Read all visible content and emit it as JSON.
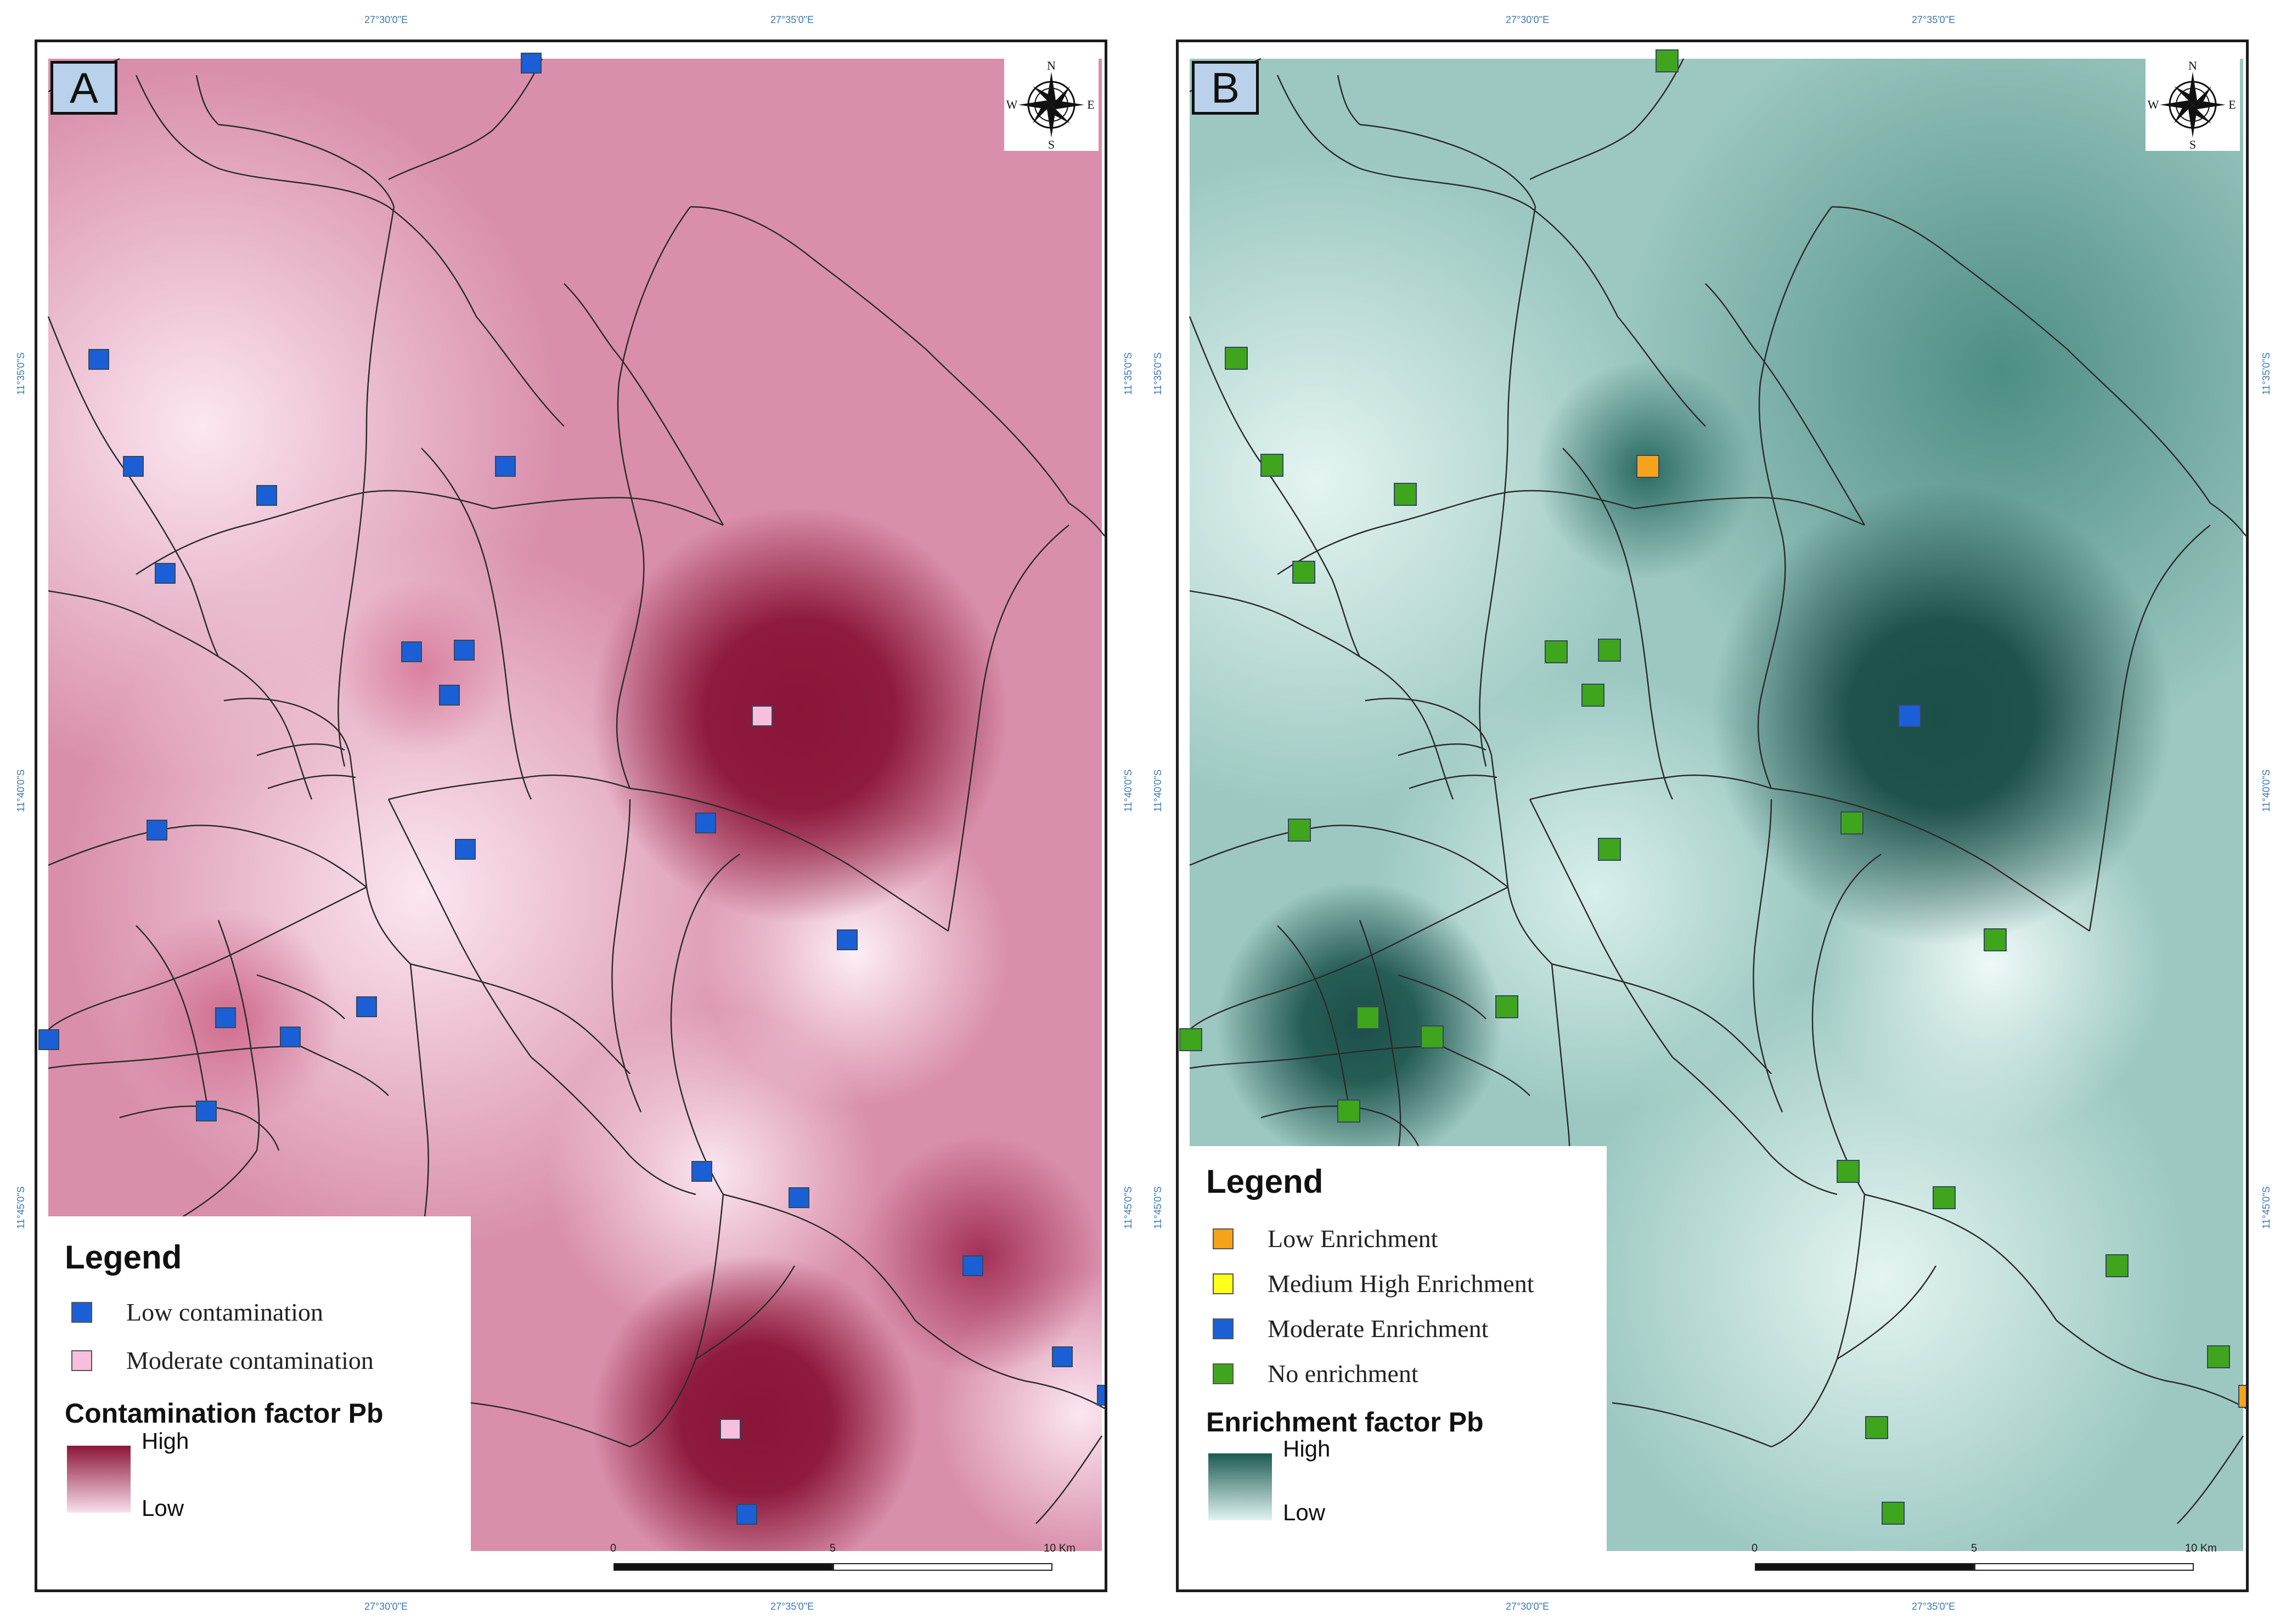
{
  "coordinates": {
    "lon_1": "27°30'0\"E",
    "lon_2": "27°35'0\"E",
    "lat_1": "11°35'0\"S",
    "lat_2": "11°40'0\"S",
    "lat_3": "11°45'0\"S"
  },
  "compass": {
    "n": "N",
    "s": "S",
    "e": "E",
    "w": "W"
  },
  "scale": {
    "tick_0": "0",
    "tick_5": "5",
    "tick_10": "10 Km"
  },
  "panel_a": {
    "label": "A",
    "legend_title": "Legend",
    "items": [
      {
        "label": "Low contamination",
        "color": "#1a5fd6"
      },
      {
        "label": "Moderate contamination",
        "color": "#f7bfdc"
      }
    ],
    "ramp_title": "Contamination factor Pb",
    "ramp_high": "High",
    "ramp_low": "Low",
    "ramp_colors": [
      "#8b1538",
      "#f8dfec"
    ],
    "background_colors": [
      "#f8dfec",
      "#d27a9a",
      "#8b1538"
    ]
  },
  "panel_b": {
    "label": "B",
    "legend_title": "Legend",
    "items": [
      {
        "label": "Low Enrichment",
        "color": "#f5a31b"
      },
      {
        "label": "Medium High Enrichment",
        "color": "#ffff1a"
      },
      {
        "label": "Moderate Enrichment",
        "color": "#1a5fd6"
      },
      {
        "label": "No enrichment",
        "color": "#3fa51c"
      }
    ],
    "ramp_title": "Enrichment factor Pb",
    "ramp_high": "High",
    "ramp_low": "Low",
    "ramp_colors": [
      "#1d5a52",
      "#e0f3f1"
    ],
    "background_colors": [
      "#e0f3f1",
      "#7fb5ac",
      "#1d5a52"
    ]
  }
}
